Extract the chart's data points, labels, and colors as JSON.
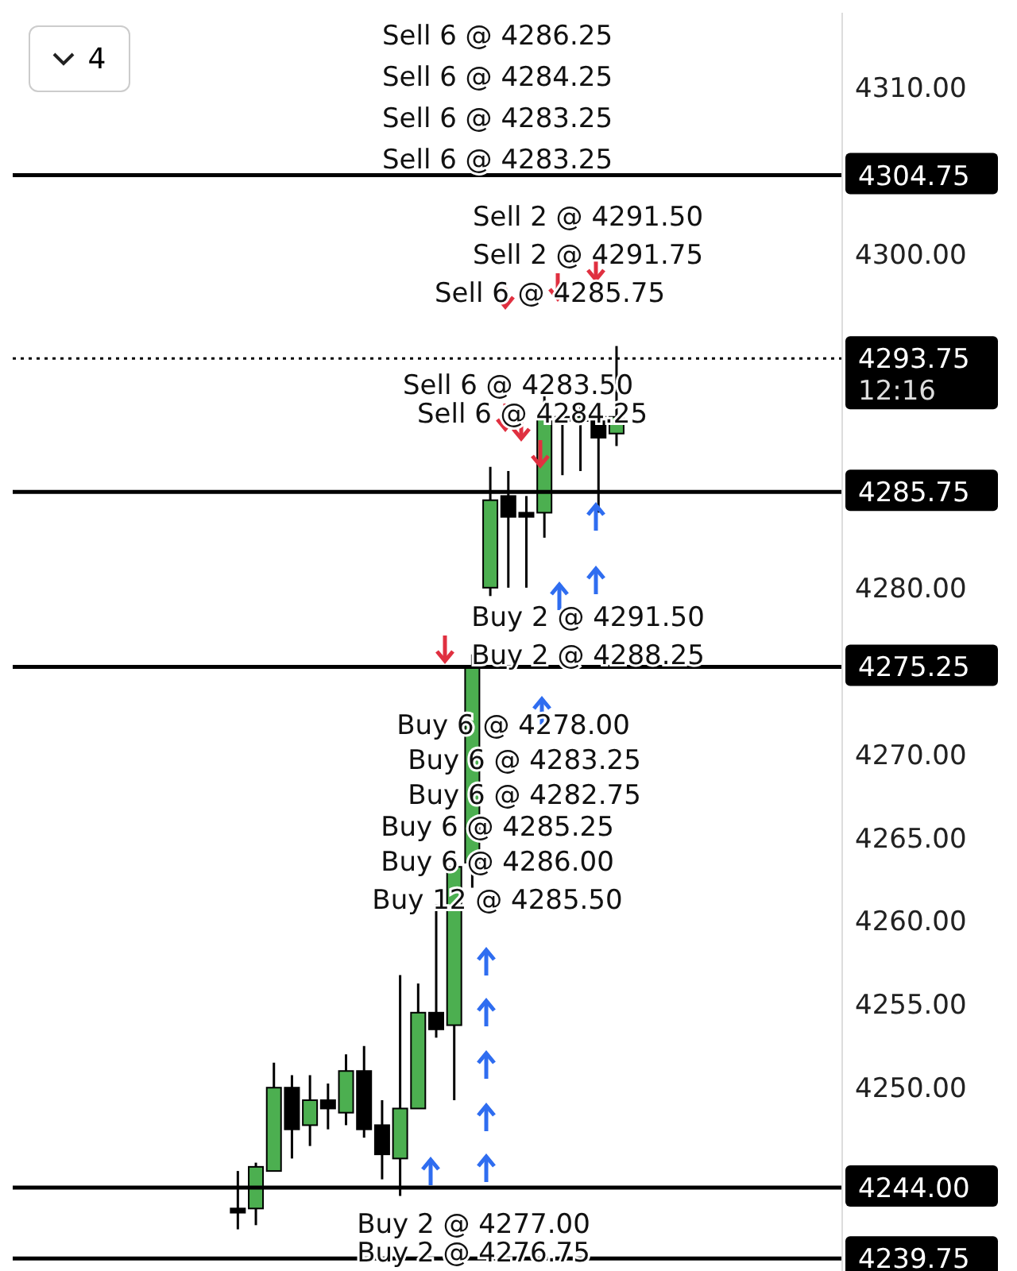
{
  "chart_data": {
    "type": "candlestick",
    "categories": [
      null,
      null,
      null,
      null,
      null,
      null,
      null,
      null,
      null,
      null,
      null,
      null,
      null,
      null,
      null,
      null,
      null,
      null,
      null,
      null,
      null,
      null,
      null,
      null,
      null,
      null,
      null,
      null,
      null,
      null,
      null,
      null,
      null,
      null,
      null,
      null,
      null,
      null,
      null,
      null,
      null,
      null,
      null,
      null,
      null,
      null
    ],
    "ohlc": [
      null,
      null,
      null,
      null,
      null,
      null,
      null,
      null,
      null,
      null,
      null,
      null,
      [
        4242.5,
        4245,
        4241.5,
        4242.75
      ],
      [
        4242.75,
        4245.5,
        4241.75,
        4245.25
      ],
      [
        4245,
        4251.5,
        4245,
        4250
      ],
      [
        4250,
        4250.75,
        4245.75,
        4247.5
      ],
      [
        4247.75,
        4250.75,
        4246.5,
        4249.25
      ],
      [
        4249.25,
        4250.25,
        4247.5,
        4248.75
      ],
      [
        4248.5,
        4252,
        4247.75,
        4251
      ],
      [
        4251,
        4252.5,
        4247,
        4247.5
      ],
      [
        4247.75,
        4249.25,
        4244.5,
        4246
      ],
      [
        4245.75,
        4256.75,
        4243.5,
        4248.75
      ],
      [
        4248.75,
        4256.25,
        4248.75,
        4254.5
      ],
      [
        4254.5,
        4261,
        4253,
        4253.5
      ],
      [
        4253.75,
        4264,
        4249.25,
        4263.25
      ],
      [
        4263.5,
        4276,
        4262,
        4275.25
      ],
      [
        4280,
        4287.25,
        4279.5,
        4285.25
      ],
      [
        4285.5,
        4287,
        4280,
        4284.25
      ],
      [
        4284.5,
        4285.5,
        4280,
        4284.25
      ],
      [
        4284.5,
        4291.5,
        4283,
        4290.25
      ],
      [
        4290.25,
        4290.5,
        4286.75,
        4290
      ],
      [
        4290,
        4291,
        4287,
        4290.25
      ],
      [
        4290.25,
        4291,
        4284.5,
        4289
      ],
      [
        4289.25,
        4294.5,
        4288.5,
        4290.25
      ],
      null,
      null,
      null,
      null,
      null,
      null,
      null,
      null,
      null,
      null,
      null,
      null
    ],
    "colors": [
      null,
      null,
      null,
      null,
      null,
      null,
      null,
      null,
      null,
      null,
      null,
      null,
      "#000000",
      "#4caf50",
      "#4caf50",
      "#000000",
      "#4caf50",
      "#000000",
      "#4caf50",
      "#000000",
      "#000000",
      "#4caf50",
      "#4caf50",
      "#000000",
      "#4caf50",
      "#4caf50",
      "#4caf50",
      "#000000",
      "#000000",
      "#4caf50",
      "#000000",
      "#4caf50",
      "#000000",
      "#4caf50",
      null,
      null,
      null,
      null,
      null,
      null,
      null,
      null,
      null,
      null,
      null,
      null
    ],
    "ylim": [
      4239,
      4314.5
    ],
    "yticks": [
      {
        "value": 4250,
        "label": "4250.00"
      },
      {
        "value": 4255,
        "label": "4255.00"
      },
      {
        "value": 4260,
        "label": "4260.00"
      },
      {
        "value": 4265,
        "label": "4265.00"
      },
      {
        "value": 4270,
        "label": "4270.00"
      },
      {
        "value": 4280,
        "label": "4280.00"
      },
      {
        "value": 4300,
        "label": "4300.00"
      },
      {
        "value": 4310,
        "label": "4310.00"
      }
    ],
    "tick_labels": "y",
    "ref_lines": [
      {
        "axis": "y",
        "value": 4304.75,
        "label": "4304.75",
        "color": "#000000"
      },
      {
        "axis": "y",
        "value": 4293.75,
        "label": "4293.75\n12:16",
        "color": "#000000",
        "line_style": "dotted"
      },
      {
        "axis": "y",
        "value": 4285.75,
        "label": "4285.75",
        "color": "#000000"
      },
      {
        "axis": "y",
        "value": 4275.25,
        "label": "4275.25",
        "color": "#000000"
      },
      {
        "axis": "y",
        "value": 4244,
        "label": "4244.00",
        "color": "#000000"
      },
      {
        "axis": "y",
        "value": 4239.75,
        "label": "4239.75",
        "color": "#000000"
      }
    ],
    "annotations": [
      "Sell 6 @ 4286.25",
      "Sell 6 @ 4284.25",
      "Sell 6 @ 4283.25",
      "Sell 6 @ 4283.25",
      "Sell 2 @ 4291.50",
      "Sell 2 @ 4291.75",
      "Sell 6 @ 4285.75",
      "Sell 6 @ 4283.50",
      "Sell 6 @ 4284.25",
      "Buy 2 @ 4291.50",
      "Buy 2 @ 4288.25",
      "Buy 6 @ 4278.00",
      "Buy 6 @ 4283.25",
      "Buy 6 @ 4282.75",
      "Buy 6 @ 4285.25",
      "Buy 6 @ 4286.00",
      "Buy 12 @ 4285.50",
      "Buy 2 @ 4277.00",
      "Buy 2 @ 4276.75",
      "4"
    ],
    "legend": false,
    "grid": false
  }
}
